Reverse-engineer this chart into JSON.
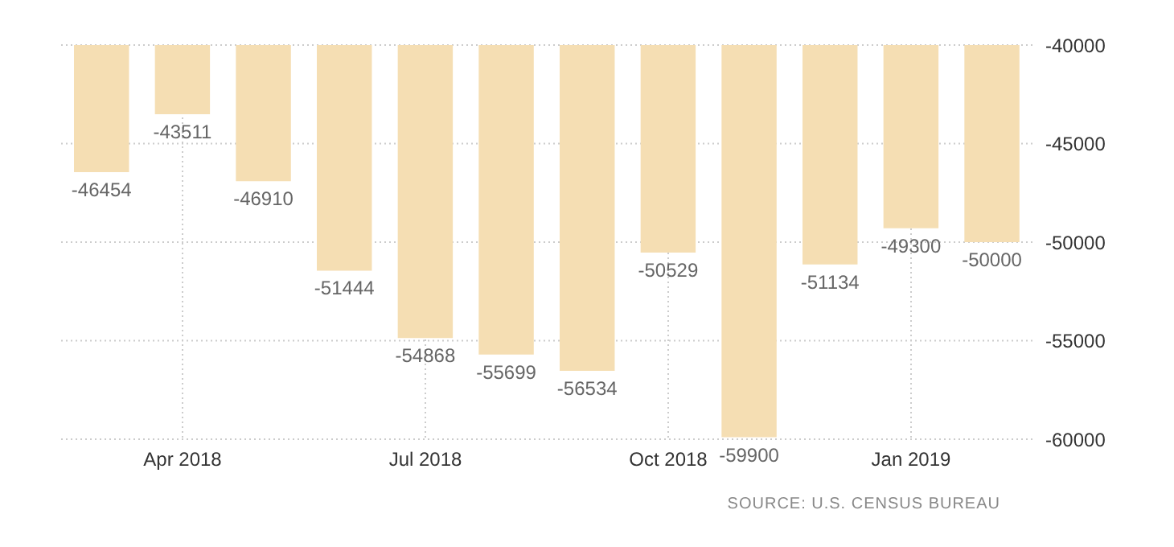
{
  "chart_data": {
    "type": "bar",
    "categories": [
      null,
      "Apr 2018",
      null,
      null,
      "Jul 2018",
      null,
      null,
      "Oct 2018",
      null,
      null,
      "Jan 2019",
      null
    ],
    "values": [
      -46454,
      -43511,
      -46910,
      -51444,
      -54868,
      -55699,
      -56534,
      -50529,
      -59900,
      -51134,
      -49300,
      -50000
    ],
    "color": "#f5deb3",
    "ylim": [
      -60000,
      -40000
    ],
    "yticks": [
      -60000,
      -55000,
      -50000,
      -45000,
      -40000
    ],
    "grid": true,
    "data_labels": true,
    "annotations": [
      "SOURCE: U.S. CENSUS BUREAU"
    ]
  }
}
